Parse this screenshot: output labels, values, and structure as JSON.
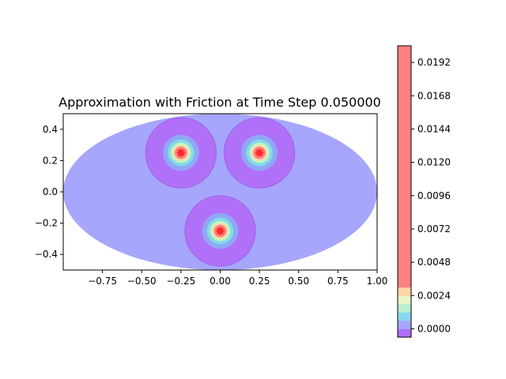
{
  "chart_data": {
    "type": "heatmap",
    "title": "Approximation with Friction at Time Step 0.050000",
    "xlabel": "",
    "ylabel": "",
    "xlim": [
      -1.0,
      1.0
    ],
    "ylim": [
      -0.5,
      0.5
    ],
    "xticks": [
      -0.75,
      -0.5,
      -0.25,
      0.0,
      0.25,
      0.5,
      0.75,
      1.0
    ],
    "xtick_labels": [
      "−0.75",
      "−0.50",
      "−0.25",
      "0.00",
      "0.25",
      "0.50",
      "0.75",
      "1.00"
    ],
    "yticks": [
      0.4,
      0.2,
      0.0,
      -0.2,
      -0.4
    ],
    "ytick_labels": [
      "0.4",
      "0.2",
      "0.0",
      "−0.2",
      "−0.4"
    ],
    "domain": {
      "shape": "ellipse",
      "center": [
        0.0,
        0.0
      ],
      "semi_axes": [
        1.0,
        0.5
      ]
    },
    "sources": [
      {
        "center": [
          -0.25,
          0.25
        ]
      },
      {
        "center": [
          0.25,
          0.25
        ]
      },
      {
        "center": [
          0.0,
          -0.25
        ]
      }
    ],
    "contour_rings": [
      {
        "radius": 0.225,
        "color": "#b070f8"
      },
      {
        "radius": 0.115,
        "color": "#8fa8f4"
      },
      {
        "radius": 0.085,
        "color": "#7fdce8"
      },
      {
        "radius": 0.065,
        "color": "#c8f2c0"
      },
      {
        "radius": 0.05,
        "color": "#ffd7a4"
      },
      {
        "radius": 0.04,
        "color": "#ff8080"
      }
    ],
    "peak_color": "#ff2828",
    "background_color": "#a6a6fc",
    "colorbar": {
      "ticks": [
        0.0192,
        0.0168,
        0.0144,
        0.012,
        0.0096,
        0.0072,
        0.0048,
        0.0024,
        0.0
      ],
      "tick_labels": [
        "0.0192",
        "0.0168",
        "0.0144",
        "0.0120",
        "0.0096",
        "0.0072",
        "0.0048",
        "0.0024",
        "0.0000"
      ],
      "range": [
        -0.0006,
        0.0204
      ],
      "segments": [
        {
          "from": -0.0006,
          "to": 0.0,
          "color": "#b070f8"
        },
        {
          "from": 0.0,
          "to": 0.0006,
          "color": "#a6a6fc"
        },
        {
          "from": 0.0006,
          "to": 0.0012,
          "color": "#8ad8f0"
        },
        {
          "from": 0.0012,
          "to": 0.0018,
          "color": "#b8f0d0"
        },
        {
          "from": 0.0018,
          "to": 0.0024,
          "color": "#e8f4c8"
        },
        {
          "from": 0.0024,
          "to": 0.003,
          "color": "#ffd7a4"
        },
        {
          "from": 0.003,
          "to": 0.0204,
          "color": "#ff8080"
        }
      ]
    }
  }
}
